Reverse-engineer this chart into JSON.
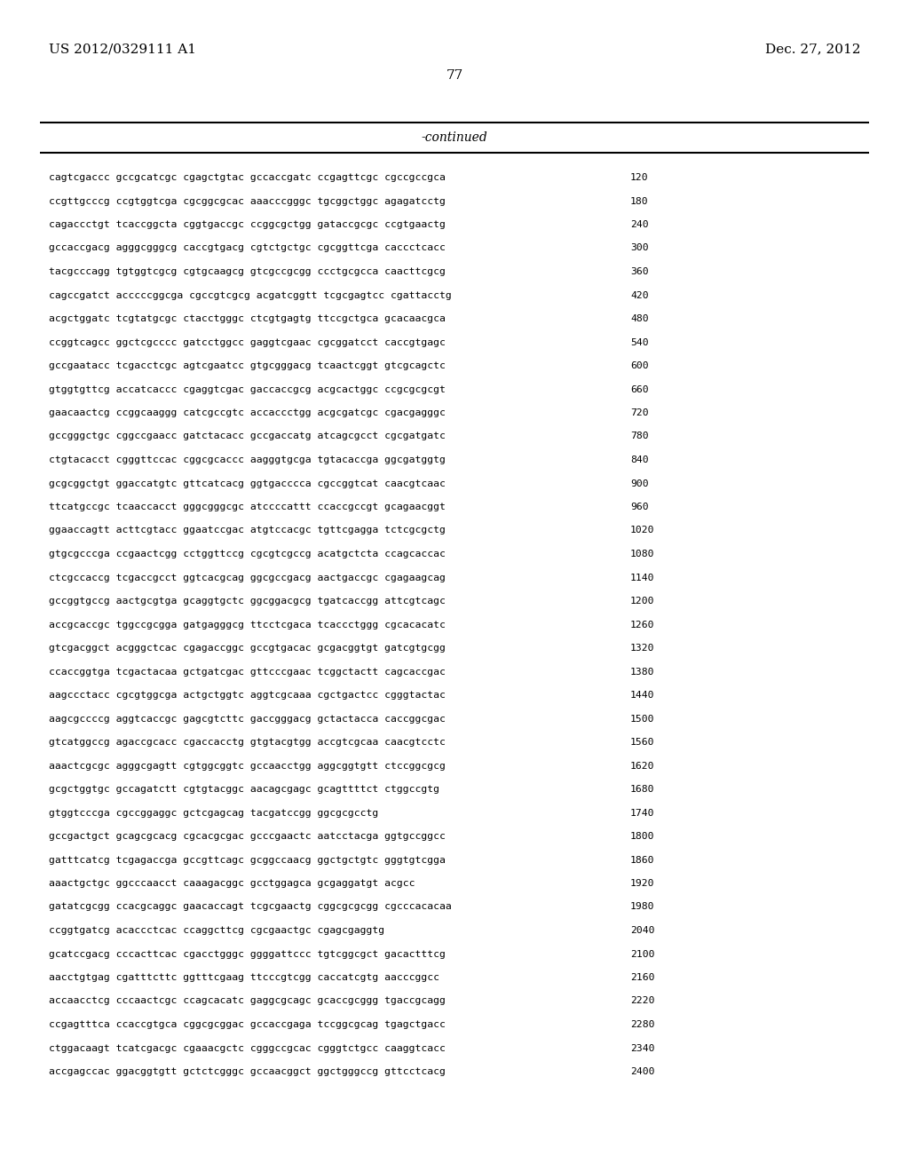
{
  "header_left": "US 2012/0329111 A1",
  "header_right": "Dec. 27, 2012",
  "page_number": "77",
  "continued_label": "-continued",
  "background_color": "#ffffff",
  "text_color": "#000000",
  "sequence_lines": [
    [
      "cagtcgaccc gccgcatcgc cgagctgtac gccaccgatc ccgagttcgc cgccgccgca",
      "120"
    ],
    [
      "ccgttgcccg ccgtggtcga cgcggcgcac aaacccgggc tgcggctggc agagatcctg",
      "180"
    ],
    [
      "cagaccctgt tcaccggcta cggtgaccgc ccggcgctgg gataccgcgc ccgtgaactg",
      "240"
    ],
    [
      "gccaccgacg agggcgggcg caccgtgacg cgtctgctgc cgcggttcga caccctcacc",
      "300"
    ],
    [
      "tacgcccagg tgtggtcgcg cgtgcaagcg gtcgccgcgg ccctgcgcca caacttcgcg",
      "360"
    ],
    [
      "cagccgatct acccccggcga cgccgtcgcg acgatcggtt tcgcgagtcc cgattacctg",
      "420"
    ],
    [
      "acgctggatc tcgtatgcgc ctacctgggc ctcgtgagtg ttccgctgca gcacaacgca",
      "480"
    ],
    [
      "ccggtcagcc ggctcgcccc gatcctggcc gaggtcgaac cgcggatcct caccgtgagc",
      "540"
    ],
    [
      "gccgaatacc tcgacctcgc agtcgaatcc gtgcgggacg tcaactcggt gtcgcagctc",
      "600"
    ],
    [
      "gtggtgttcg accatcaccc cgaggtcgac gaccaccgcg acgcactggc ccgcgcgcgt",
      "660"
    ],
    [
      "gaacaactcg ccggcaaggg catcgccgtc accaccctgg acgcgatcgc cgacgagggc",
      "720"
    ],
    [
      "gccgggctgc cggccgaacc gatctacacc gccgaccatg atcagcgcct cgcgatgatc",
      "780"
    ],
    [
      "ctgtacacct cgggttccac cggcgcaccc aagggtgcga tgtacaccga ggcgatggtg",
      "840"
    ],
    [
      "gcgcggctgt ggaccatgtc gttcatcacg ggtgacccca cgccggtcat caacgtcaac",
      "900"
    ],
    [
      "ttcatgccgc tcaaccacct gggcgggcgc atccccattt ccaccgccgt gcagaacggt",
      "960"
    ],
    [
      "ggaaccagtt acttcgtacc ggaatccgac atgtccacgc tgttcgagga tctcgcgctg",
      "1020"
    ],
    [
      "gtgcgcccga ccgaactcgg cctggttccg cgcgtcgccg acatgctcta ccagcaccac",
      "1080"
    ],
    [
      "ctcgccaccg tcgaccgcct ggtcacgcag ggcgccgacg aactgaccgc cgagaagcag",
      "1140"
    ],
    [
      "gccggtgccg aactgcgtga gcaggtgctc ggcggacgcg tgatcaccgg attcgtcagc",
      "1200"
    ],
    [
      "accgcaccgc tggccgcgga gatgagggcg ttcctcgaca tcaccctggg cgcacacatc",
      "1260"
    ],
    [
      "gtcgacggct acgggctcac cgagaccggc gccgtgacac gcgacggtgt gatcgtgcgg",
      "1320"
    ],
    [
      "ccaccggtga tcgactacaa gctgatcgac gttcccgaac tcggctactt cagcaccgac",
      "1380"
    ],
    [
      "aagccctacc cgcgtggcga actgctggtc aggtcgcaaa cgctgactcc cgggtactac",
      "1440"
    ],
    [
      "aagcgccccg aggtcaccgc gagcgtcttc gaccgggacg gctactacca caccggcgac",
      "1500"
    ],
    [
      "gtcatggccg agaccgcacc cgaccacctg gtgtacgtgg accgtcgcaa caacgtcctc",
      "1560"
    ],
    [
      "aaactcgcgc agggcgagtt cgtggcggtc gccaacctgg aggcggtgtt ctccggcgcg",
      "1620"
    ],
    [
      "gcgctggtgc gccagatctt cgtgtacggc aacagcgagc gcagttttct ctggccgtg",
      "1680"
    ],
    [
      "gtggtcccga cgccggaggc gctcgagcag tacgatccgg ggcgcgcctg",
      "1740"
    ],
    [
      "gccgactgct gcagcgcacg cgcacgcgac gcccgaactc aatcctacga ggtgccggcc",
      "1800"
    ],
    [
      "gatttcatcg tcgagaccga gccgttcagc gcggccaacg ggctgctgtc gggtgtcgga",
      "1860"
    ],
    [
      "aaactgctgc ggcccaacct caaagacggc gcctggagca gcgaggatgt acgcc",
      "1920"
    ],
    [
      "gatatcgcgg ccacgcaggc gaacaccagt tcgcgaactg cggcgcgcgg cgcccacacaa",
      "1980"
    ],
    [
      "ccggtgatcg acaccctcac ccaggcttcg cgcgaactgc cgagcgaggtg",
      "2040"
    ],
    [
      "gcatccgacg cccacttcac cgacctgggc ggggattccc tgtcggcgct gacactttcg",
      "2100"
    ],
    [
      "aacctgtgag cgatttcttc ggtttcgaag ttcccgtcgg caccatcgtg aacccggcc",
      "2160"
    ],
    [
      "accaacctcg cccaactcgc ccagcacatc gaggcgcagc gcaccgcggg tgaccgcagg",
      "2220"
    ],
    [
      "ccgagtttca ccaccgtgca cggcgcggac gccaccgaga tccggcgcag tgagctgacc",
      "2280"
    ],
    [
      "ctggacaagt tcatcgacgc cgaaacgctc cgggccgcac cgggtctgcc caaggtcacc",
      "2340"
    ],
    [
      "accgagccac ggacggtgtt gctctcgggc gccaacggct ggctgggccg gttcctcacg",
      "2400"
    ]
  ]
}
